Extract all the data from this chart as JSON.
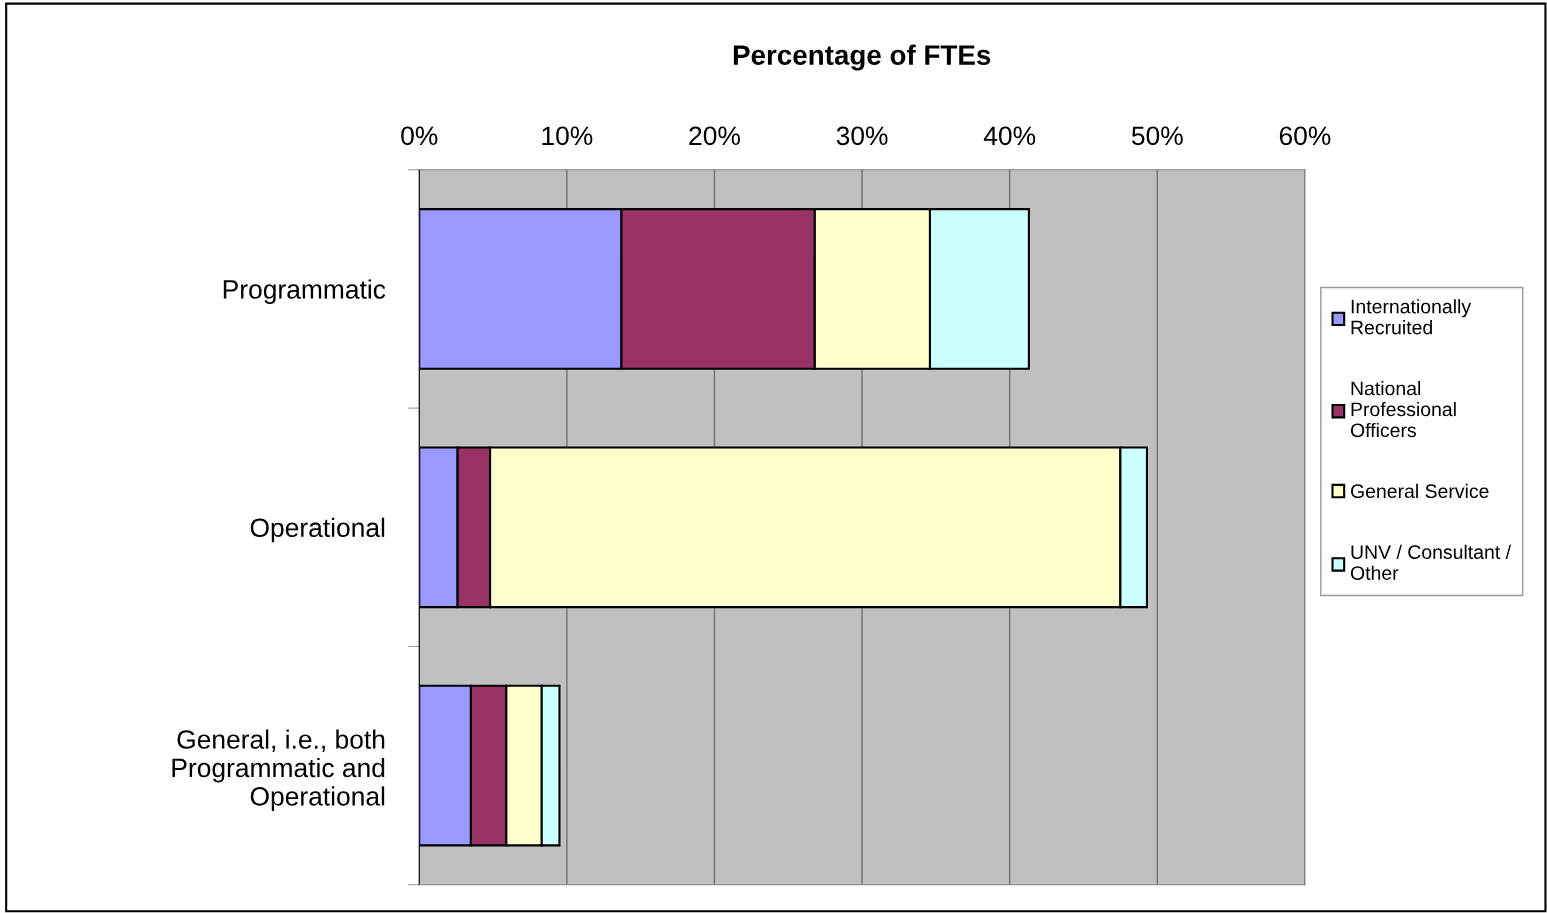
{
  "chart_data": {
    "type": "bar",
    "title": "Percentage of FTEs",
    "orientation": "horizontal",
    "stacked": true,
    "categories": [
      "Programmatic",
      "Operational",
      "General, i.e., both\nProgrammatic and\nOperational"
    ],
    "series": [
      {
        "name": "Internationally\nRecruited",
        "color": "#9999ff",
        "values": [
          13.7,
          2.6,
          3.5
        ]
      },
      {
        "name": "National\nProfessional\nOfficers",
        "color": "#993366",
        "values": [
          13.1,
          2.2,
          2.4
        ]
      },
      {
        "name": "General Service",
        "color": "#ffffcc",
        "values": [
          7.8,
          42.7,
          2.4
        ]
      },
      {
        "name": "UNV / Consultant /\nOther",
        "color": "#ccffff",
        "values": [
          6.7,
          1.8,
          1.2
        ]
      }
    ],
    "xlim": [
      0,
      60
    ],
    "xticks": [
      {
        "value": 0,
        "label": "0%"
      },
      {
        "value": 10,
        "label": "10%"
      },
      {
        "value": 20,
        "label": "20%"
      },
      {
        "value": 30,
        "label": "30%"
      },
      {
        "value": 40,
        "label": "40%"
      },
      {
        "value": 50,
        "label": "50%"
      },
      {
        "value": 60,
        "label": "60%"
      }
    ],
    "grid": "x",
    "legend": "right"
  }
}
